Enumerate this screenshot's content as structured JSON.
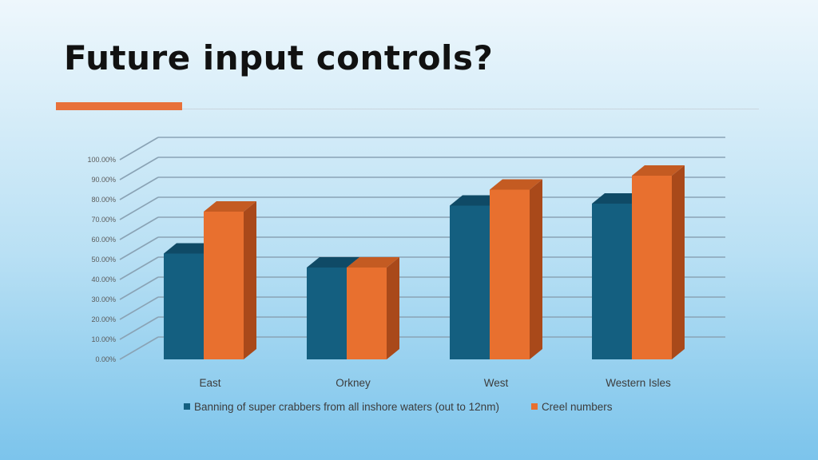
{
  "slide": {
    "title": "Future input controls?"
  },
  "colors": {
    "series1": "#145f80",
    "series1_top": "#0f4a66",
    "series1_side": "#0c3f58",
    "series2": "#e8702f",
    "series2_top": "#c45b22",
    "series2_side": "#a9491a",
    "grid": "#8aa3b5",
    "axis_text": "#5a5a5a",
    "accent": "#e8713a"
  },
  "chart_data": {
    "type": "bar",
    "title": "",
    "xlabel": "",
    "ylabel": "",
    "ylim": [
      0,
      1
    ],
    "yticks": [
      "0.00%",
      "10.00%",
      "20.00%",
      "30.00%",
      "40.00%",
      "50.00%",
      "60.00%",
      "70.00%",
      "80.00%",
      "90.00%",
      "100.00%"
    ],
    "categories": [
      "East",
      "Orkney",
      "West",
      "Western Isles"
    ],
    "series": [
      {
        "name": "Banning of super crabbers from all inshore waters (out to 12nm)",
        "values": [
          0.53,
          0.46,
          0.77,
          0.78
        ]
      },
      {
        "name": "Creel numbers",
        "values": [
          0.74,
          0.46,
          0.85,
          0.92
        ]
      }
    ],
    "legend_position": "bottom",
    "grid": true,
    "style": "3d-clustered-column"
  }
}
